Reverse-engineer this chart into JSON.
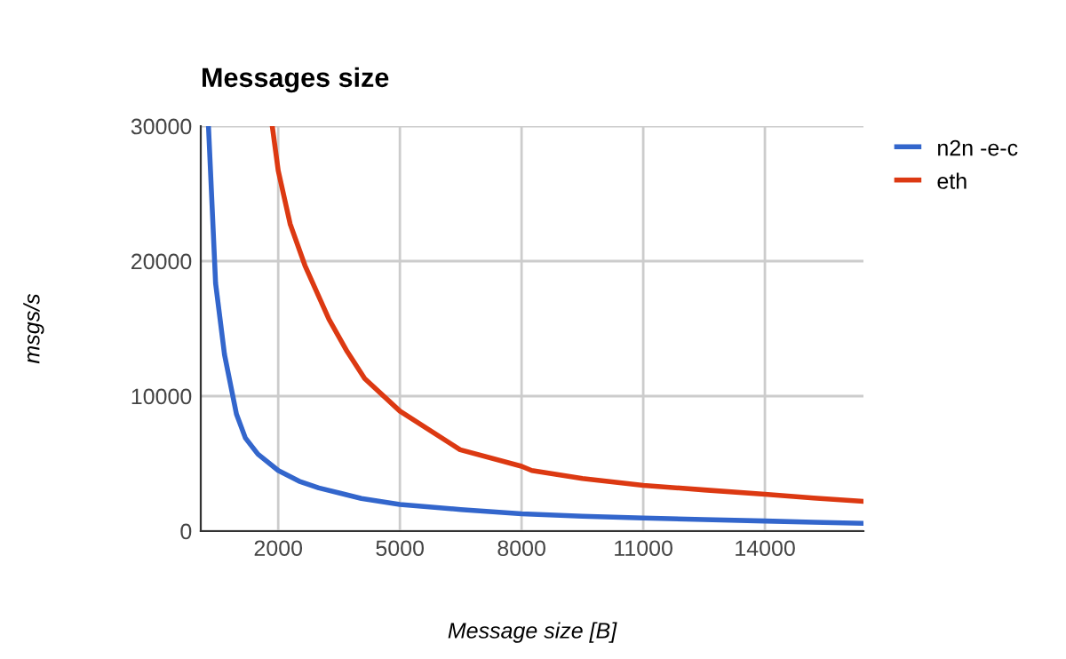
{
  "chart_data": {
    "type": "line",
    "title": "Messages size",
    "xlabel": "Message size [B]",
    "ylabel": "msgs/s",
    "xlim": [
      90,
      16430
    ],
    "ylim": [
      0,
      30000
    ],
    "xticks": [
      2000,
      5000,
      8000,
      11000,
      14000
    ],
    "yticks": [
      0,
      10000,
      20000,
      30000
    ],
    "grid": true,
    "legend": "right",
    "marker": "none",
    "line_style": "solid",
    "series": [
      {
        "name": "n2n -e-c",
        "color": "#3366cc",
        "x": [
          280,
          456,
          676,
          970,
          1190,
          1500,
          2000,
          2515,
          3000,
          3545,
          4050,
          5000,
          6500,
          8000,
          9500,
          11000,
          12500,
          14000,
          15200,
          16430
        ],
        "values": [
          30000,
          18350,
          13070,
          8670,
          6900,
          5700,
          4490,
          3700,
          3200,
          2800,
          2420,
          1980,
          1600,
          1280,
          1100,
          970,
          860,
          750,
          660,
          570
        ]
      },
      {
        "name": "eth",
        "color": "#dc3912",
        "x": [
          1853,
          2000,
          2294,
          2660,
          3250,
          3700,
          4132,
          5000,
          6485,
          8000,
          8250,
          9500,
          11000,
          12500,
          14000,
          15200,
          16430
        ],
        "values": [
          30000,
          26700,
          22750,
          19670,
          15700,
          13300,
          11300,
          8890,
          6030,
          4800,
          4490,
          3900,
          3390,
          3050,
          2730,
          2450,
          2200
        ]
      }
    ]
  }
}
